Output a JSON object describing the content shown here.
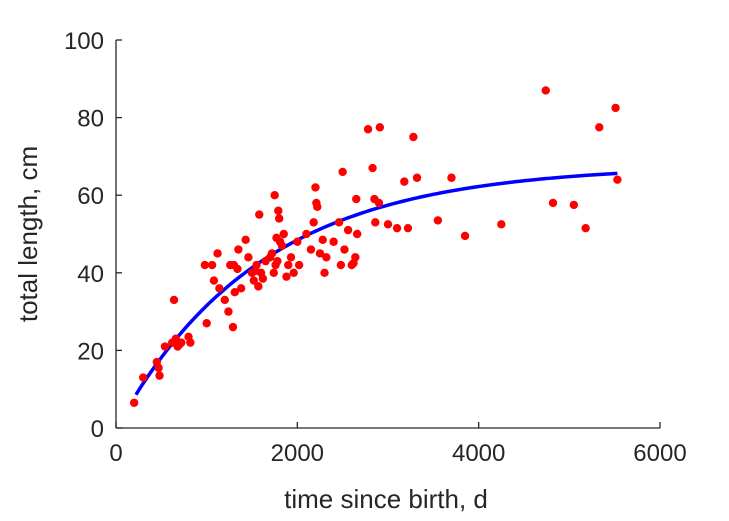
{
  "chart_data": {
    "type": "scatter",
    "title": "",
    "xlabel": "time since birth, d",
    "ylabel": "total length, cm",
    "xlim": [
      0,
      6000
    ],
    "ylim": [
      0,
      100
    ],
    "xticks": [
      0,
      2000,
      4000,
      6000
    ],
    "yticks": [
      0,
      20,
      40,
      60,
      80,
      100
    ],
    "xtick_labels": [
      "0",
      "2000",
      "4000",
      "6000"
    ],
    "ytick_labels": [
      "0",
      "20",
      "40",
      "60",
      "80",
      "100"
    ],
    "grid": false,
    "colors": {
      "points": "#ff0000",
      "curve": "#0000ff",
      "axis": "#262626"
    },
    "series": [
      {
        "kind": "scatter",
        "points": [
          [
            200,
            6.5
          ],
          [
            300,
            13
          ],
          [
            450,
            17
          ],
          [
            470,
            15.5
          ],
          [
            480,
            13.5
          ],
          [
            540,
            21
          ],
          [
            620,
            22
          ],
          [
            640,
            33
          ],
          [
            660,
            23
          ],
          [
            680,
            21
          ],
          [
            700,
            21.5
          ],
          [
            720,
            22
          ],
          [
            800,
            23.5
          ],
          [
            820,
            22
          ],
          [
            980,
            42
          ],
          [
            1000,
            27
          ],
          [
            1060,
            42
          ],
          [
            1080,
            38
          ],
          [
            1120,
            45
          ],
          [
            1140,
            36
          ],
          [
            1200,
            33
          ],
          [
            1240,
            30
          ],
          [
            1260,
            42
          ],
          [
            1290,
            26
          ],
          [
            1300,
            42
          ],
          [
            1310,
            35
          ],
          [
            1340,
            41
          ],
          [
            1350,
            46
          ],
          [
            1380,
            36
          ],
          [
            1430,
            48.5
          ],
          [
            1460,
            44
          ],
          [
            1500,
            40
          ],
          [
            1520,
            38
          ],
          [
            1540,
            40.5
          ],
          [
            1550,
            42
          ],
          [
            1570,
            36.5
          ],
          [
            1580,
            55
          ],
          [
            1600,
            40
          ],
          [
            1620,
            38.5
          ],
          [
            1650,
            43
          ],
          [
            1700,
            44
          ],
          [
            1720,
            45
          ],
          [
            1740,
            40
          ],
          [
            1750,
            60
          ],
          [
            1760,
            42
          ],
          [
            1770,
            49
          ],
          [
            1780,
            43
          ],
          [
            1790,
            56
          ],
          [
            1800,
            54
          ],
          [
            1810,
            48
          ],
          [
            1830,
            47
          ],
          [
            1850,
            50
          ],
          [
            1880,
            39
          ],
          [
            1900,
            42
          ],
          [
            1930,
            44
          ],
          [
            1960,
            40
          ],
          [
            2000,
            48
          ],
          [
            2020,
            42
          ],
          [
            2100,
            50
          ],
          [
            2150,
            46
          ],
          [
            2180,
            53
          ],
          [
            2200,
            62
          ],
          [
            2210,
            58
          ],
          [
            2220,
            57
          ],
          [
            2250,
            45
          ],
          [
            2280,
            48.5
          ],
          [
            2300,
            40
          ],
          [
            2320,
            44
          ],
          [
            2400,
            48
          ],
          [
            2460,
            53
          ],
          [
            2480,
            42
          ],
          [
            2500,
            66
          ],
          [
            2520,
            46
          ],
          [
            2560,
            51
          ],
          [
            2600,
            42
          ],
          [
            2620,
            42.5
          ],
          [
            2640,
            44
          ],
          [
            2660,
            50
          ],
          [
            2650,
            59
          ],
          [
            2780,
            77
          ],
          [
            2830,
            67
          ],
          [
            2850,
            59
          ],
          [
            2860,
            53
          ],
          [
            2900,
            58
          ],
          [
            2910,
            77.5
          ],
          [
            3000,
            52.5
          ],
          [
            3100,
            51.5
          ],
          [
            3180,
            63.5
          ],
          [
            3220,
            51.5
          ],
          [
            3280,
            75
          ],
          [
            3320,
            64.5
          ],
          [
            3550,
            53.5
          ],
          [
            3700,
            64.5
          ],
          [
            3850,
            49.5
          ],
          [
            4250,
            52.5
          ],
          [
            4740,
            87
          ],
          [
            4820,
            58
          ],
          [
            5050,
            57.5
          ],
          [
            5180,
            51.5
          ],
          [
            5330,
            77.5
          ],
          [
            5510,
            82.5
          ],
          [
            5530,
            64
          ]
        ]
      },
      {
        "kind": "fit-curve",
        "model": "von-bertalanffy",
        "Linf": 67.7,
        "k": 0.00063,
        "t0": 4.5,
        "x_range": [
          220,
          5530
        ]
      }
    ]
  }
}
